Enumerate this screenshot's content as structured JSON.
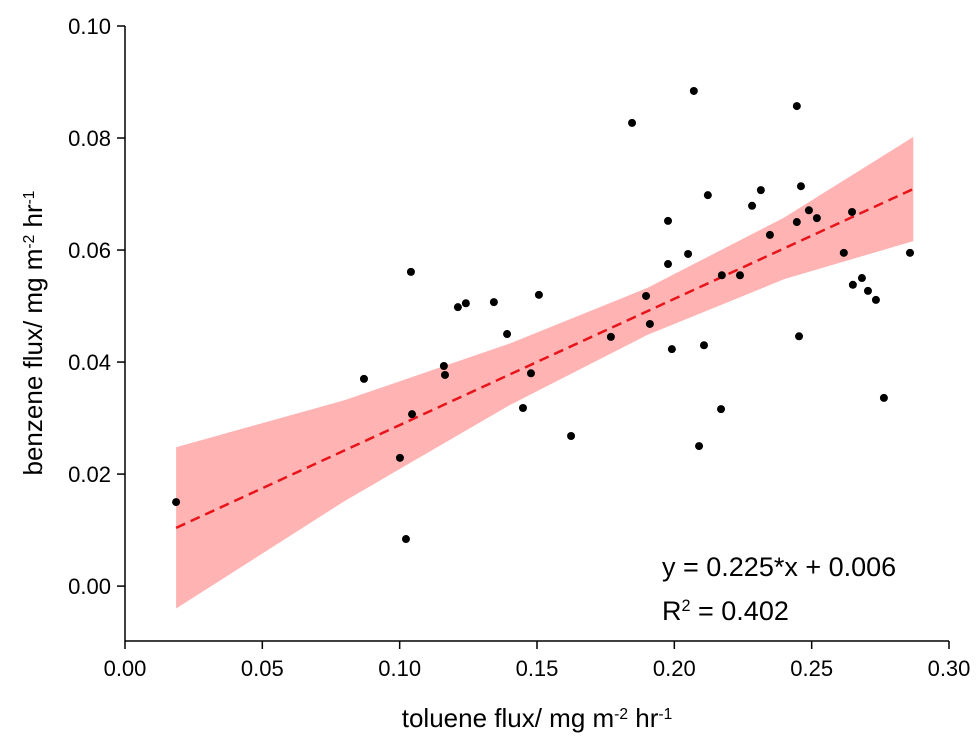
{
  "chart_data": {
    "type": "scatter",
    "x_label": [
      {
        "text": "toluene flux/ mg m"
      },
      {
        "text": "-2",
        "sup": true
      },
      {
        "text": " hr"
      },
      {
        "text": "-1",
        "sup": true
      }
    ],
    "y_label": [
      {
        "text": "benzene flux/ mg m"
      },
      {
        "text": "-2",
        "sup": true
      },
      {
        "text": " hr"
      },
      {
        "text": "-1",
        "sup": true
      }
    ],
    "equation": "y = 0.225*x + 0.006",
    "r2": [
      {
        "text": "R"
      },
      {
        "text": "2",
        "sup": true
      },
      {
        "text": " = 0.402"
      }
    ],
    "xlim": [
      0,
      0.3
    ],
    "ylim": [
      -0.0098,
      0.1
    ],
    "xticks": [
      {
        "value": 0,
        "label": "0.00"
      },
      {
        "value": 0.05,
        "label": "0.05"
      },
      {
        "value": 0.1,
        "label": "0.10"
      },
      {
        "value": 0.15,
        "label": "0.15"
      },
      {
        "value": 0.2,
        "label": "0.20"
      },
      {
        "value": 0.25,
        "label": "0.25"
      },
      {
        "value": 0.3,
        "label": "0.30"
      }
    ],
    "yticks": [
      {
        "value": 0,
        "label": "0.00"
      },
      {
        "value": 0.02,
        "label": "0.02"
      },
      {
        "value": 0.04,
        "label": "0.04"
      },
      {
        "value": 0.06,
        "label": "0.06"
      },
      {
        "value": 0.08,
        "label": "0.08"
      },
      {
        "value": 0.1,
        "label": "0.10"
      }
    ],
    "color": "#000000",
    "x": [
      0.0186,
      0.087,
      0.1001,
      0.1023,
      0.1041,
      0.1045,
      0.1161,
      0.1165,
      0.1212,
      0.1241,
      0.1343,
      0.1391,
      0.1449,
      0.1478,
      0.1507,
      0.1624,
      0.1769,
      0.1846,
      0.1897,
      0.1911,
      0.1977,
      0.1977,
      0.1991,
      0.205,
      0.2071,
      0.209,
      0.2108,
      0.2122,
      0.217,
      0.2173,
      0.2239,
      0.2283,
      0.2315,
      0.2348,
      0.2446,
      0.2446,
      0.2454,
      0.2461,
      0.249,
      0.2519,
      0.2617,
      0.2647,
      0.265,
      0.2683,
      0.2705,
      0.2734,
      0.2763,
      0.2858
    ],
    "values": [
      0.015,
      0.037,
      0.0229,
      0.0084,
      0.0561,
      0.0307,
      0.0393,
      0.0377,
      0.0498,
      0.0505,
      0.0507,
      0.045,
      0.0318,
      0.038,
      0.052,
      0.0268,
      0.0445,
      0.0827,
      0.0518,
      0.0468,
      0.0652,
      0.0575,
      0.0423,
      0.0593,
      0.0884,
      0.025,
      0.043,
      0.0698,
      0.0316,
      0.0555,
      0.0555,
      0.0679,
      0.0707,
      0.0627,
      0.0857,
      0.065,
      0.0446,
      0.0714,
      0.0671,
      0.0657,
      0.0595,
      0.0668,
      0.0538,
      0.055,
      0.0527,
      0.0511,
      0.0336,
      0.0595
    ],
    "fit_line": {
      "color": "#e8141a",
      "x": [
        0.0186,
        0.287
      ],
      "y": [
        0.0104,
        0.0709
      ]
    },
    "confidence_band": {
      "color": "#ffb3b3",
      "x": [
        0.0186,
        0.08,
        0.14,
        0.19,
        0.24,
        0.287
      ],
      "lower": [
        -0.004,
        0.0152,
        0.0323,
        0.0448,
        0.0548,
        0.0616
      ],
      "upper": [
        0.0248,
        0.0332,
        0.0433,
        0.0532,
        0.0658,
        0.0802
      ]
    }
  }
}
